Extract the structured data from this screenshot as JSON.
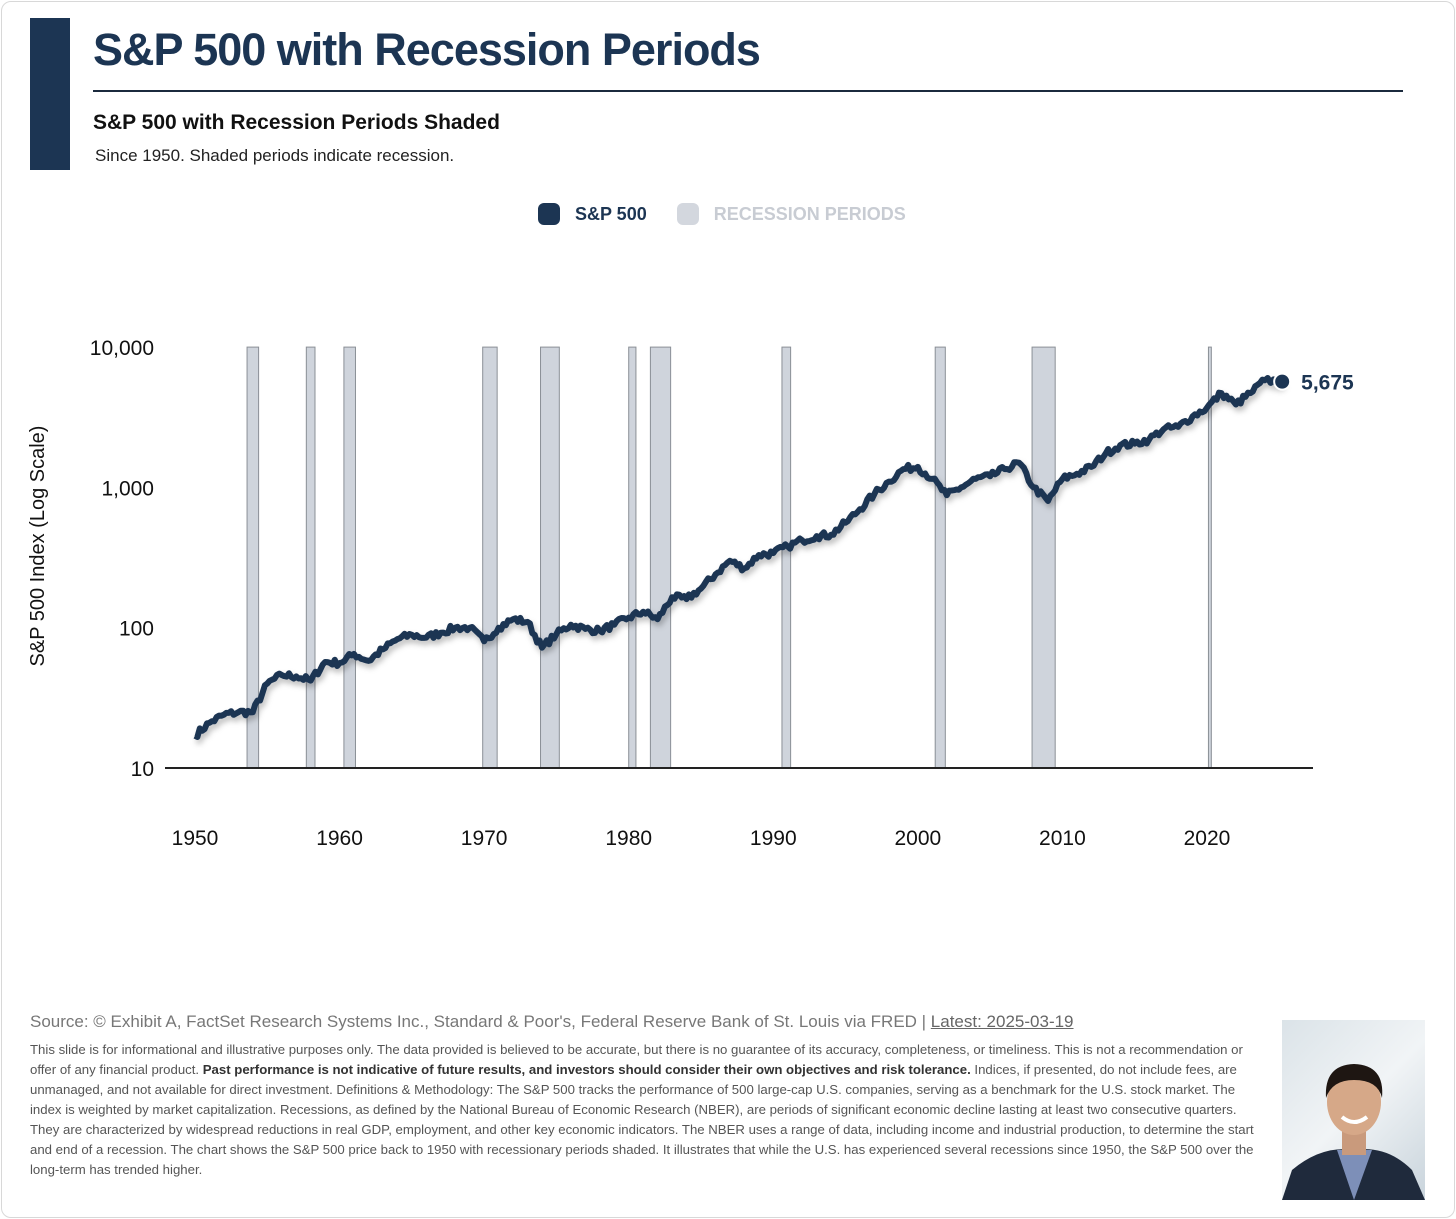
{
  "header": {
    "title": "S&P 500 with Recession Periods",
    "subtitle": "S&P 500 with Recession Periods Shaded",
    "description": "Since 1950. Shaded periods indicate recession."
  },
  "colors": {
    "primary": "#1c3553",
    "recession": "#cfd4dc",
    "recession_edge": "#8a8f96"
  },
  "chart_data": {
    "type": "line",
    "title": "S&P 500 with Recession Periods Shaded",
    "xlabel": "",
    "ylabel": "S&P 500 Index (Log Scale)",
    "yscale": "log",
    "ylim": [
      10,
      10000
    ],
    "xlim": [
      1948,
      2028
    ],
    "yticks": [
      {
        "v": 10,
        "label": "10"
      },
      {
        "v": 100,
        "label": "100"
      },
      {
        "v": 1000,
        "label": "1,000"
      },
      {
        "v": 10000,
        "label": "10,000"
      }
    ],
    "xticks": [
      1950,
      1960,
      1970,
      1980,
      1990,
      2000,
      2010,
      2020
    ],
    "legend": {
      "placement": "top-center",
      "entries": [
        "S&P 500",
        "RECESSION PERIODS"
      ]
    },
    "last_label": "5,675",
    "last_value": 5675,
    "recessions": [
      [
        1953.6,
        1954.4
      ],
      [
        1957.7,
        1958.3
      ],
      [
        1960.3,
        1961.1
      ],
      [
        1969.9,
        1970.9
      ],
      [
        1973.9,
        1975.2
      ],
      [
        1980.0,
        1980.5
      ],
      [
        1981.5,
        1982.9
      ],
      [
        1990.6,
        1991.2
      ],
      [
        2001.2,
        2001.9
      ],
      [
        2007.9,
        2009.5
      ],
      [
        2020.1,
        2020.3
      ]
    ],
    "series": [
      {
        "name": "S&P 500",
        "x": [
          1950,
          1951,
          1952,
          1953,
          1954,
          1955,
          1956,
          1957,
          1958,
          1959,
          1960,
          1961,
          1962,
          1963,
          1964,
          1965,
          1966,
          1967,
          1968,
          1969,
          1970,
          1971,
          1972,
          1973,
          1974,
          1975,
          1976,
          1977,
          1978,
          1979,
          1980,
          1981,
          1982,
          1983,
          1984,
          1985,
          1986,
          1987,
          1988,
          1989,
          1990,
          1991,
          1992,
          1993,
          1994,
          1995,
          1996,
          1997,
          1998,
          1999,
          2000,
          2001,
          2002,
          2003,
          2004,
          2005,
          2006,
          2007,
          2008,
          2009,
          2010,
          2011,
          2012,
          2013,
          2014,
          2015,
          2016,
          2017,
          2018,
          2019,
          2020,
          2021,
          2022,
          2023,
          2024,
          2025.2
        ],
        "values": [
          17,
          21,
          24,
          25,
          25,
          40,
          46,
          45,
          42,
          57,
          56,
          65,
          58,
          70,
          83,
          89,
          85,
          92,
          100,
          100,
          80,
          100,
          115,
          110,
          72,
          90,
          105,
          98,
          95,
          105,
          118,
          130,
          115,
          165,
          160,
          190,
          240,
          300,
          265,
          330,
          340,
          380,
          420,
          450,
          460,
          560,
          700,
          900,
          1100,
          1350,
          1400,
          1150,
          880,
          1000,
          1150,
          1200,
          1350,
          1500,
          1000,
          800,
          1150,
          1250,
          1400,
          1750,
          2000,
          2050,
          2200,
          2600,
          2700,
          3200,
          3700,
          4700,
          3900,
          4700,
          5800,
          5675
        ]
      }
    ]
  },
  "footer": {
    "source": "Source: © Exhibit A, FactSet Research Systems Inc., Standard & Poor's, Federal Reserve Bank of St. Louis via FRED | ",
    "latest": "Latest: 2025-03-19",
    "disclaimer_1": "This slide is for informational and illustrative purposes only. The data provided is believed to be accurate, but there is no guarantee of its accuracy, completeness, or timeliness. This is not a recommendation or offer of any financial product. ",
    "disclaimer_bold": "Past performance is not indicative of future results, and investors should consider their own objectives and risk tolerance.",
    "disclaimer_2": " Indices, if presented, do not include fees, are unmanaged, and not available for direct investment. Definitions & Methodology: The S&P 500 tracks the performance of 500 large-cap U.S. companies, serving as a benchmark for the U.S. stock market. The index is weighted by market capitalization. Recessions, as defined by the National Bureau of Economic Research (NBER), are periods of significant economic decline lasting at least two consecutive quarters. They are characterized by widespread reductions in real GDP, employment, and other key economic indicators. The NBER uses a range of data, including income and industrial production, to determine the start and end of a recession. The chart shows the S&P 500 price back to 1950 with recessionary periods shaded. It illustrates that while the U.S. has experienced several recessions since 1950, the S&P 500 over the long-term has trended higher."
  }
}
